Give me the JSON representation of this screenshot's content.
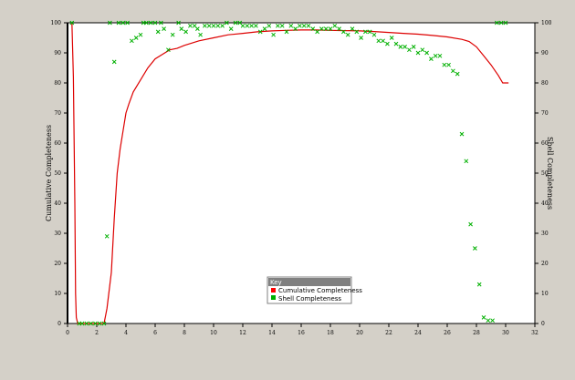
{
  "chart_data": {
    "type": "scatter",
    "xlabel": "",
    "ylabel_left": "Cumulative Completeness",
    "ylabel_right": "Shell Completeness",
    "xlim": [
      0,
      32
    ],
    "ylim": [
      0,
      100
    ],
    "x_ticks": [
      "0",
      "2",
      "4",
      "6",
      "8",
      "10",
      "12",
      "14",
      "16",
      "18",
      "20",
      "22",
      "24",
      "26",
      "28",
      "30",
      "32"
    ],
    "y_ticks": [
      "0",
      "10",
      "20",
      "30",
      "40",
      "50",
      "60",
      "70",
      "80",
      "90",
      "100"
    ],
    "legend": {
      "title": "Key",
      "entries": [
        {
          "label": "Cumulative Completeness",
          "color": "#ff0000",
          "marker": "square"
        },
        {
          "label": "Shell Completeness",
          "color": "#00b000",
          "marker": "square"
        }
      ]
    },
    "series": [
      {
        "name": "Cumulative Completeness",
        "kind": "line",
        "color": "#dd0000",
        "x": [
          0.3,
          0.4,
          0.5,
          0.55,
          0.6,
          0.7,
          1,
          1.5,
          2,
          2.5,
          2.7,
          3,
          3.2,
          3.4,
          3.6,
          3.8,
          4,
          4.2,
          4.5,
          5,
          5.5,
          6,
          6.5,
          7,
          7.5,
          8,
          9,
          10,
          11,
          12,
          13,
          14,
          15,
          16,
          17,
          18,
          19,
          20,
          21,
          22,
          23,
          24,
          25,
          26,
          27,
          27.5,
          28,
          28.5,
          29,
          29.5,
          29.8,
          30.2
        ],
        "y": [
          100,
          82,
          40,
          10,
          2,
          0,
          0,
          0,
          0,
          0,
          5,
          17,
          35,
          50,
          58,
          64,
          70,
          73,
          77,
          81,
          85,
          88,
          89.5,
          91,
          91.5,
          92.5,
          94,
          95,
          96,
          96.5,
          97,
          97.3,
          97.5,
          97.6,
          97.6,
          97.5,
          97.4,
          97.3,
          97.1,
          96.8,
          96.5,
          96.2,
          95.8,
          95.3,
          94.5,
          93.8,
          92,
          89,
          86,
          82.5,
          80,
          80
        ]
      },
      {
        "name": "Shell Completeness",
        "kind": "markers",
        "color": "#00b000",
        "x": [
          0.3,
          0.8,
          1.0,
          1.3,
          1.6,
          1.9,
          2.2,
          2.5,
          2.7,
          2.9,
          3.2,
          3.5,
          3.8,
          4.1,
          4.4,
          4.7,
          5.0,
          5.2,
          5.4,
          5.7,
          6.0,
          6.2,
          6.4,
          6.6,
          6.9,
          7.2,
          7.6,
          7.8,
          8.1,
          8.4,
          8.7,
          8.9,
          9.1,
          9.4,
          9.7,
          10.0,
          10.3,
          10.6,
          10.9,
          11.2,
          11.5,
          11.8,
          12.0,
          12.3,
          12.6,
          12.9,
          13.2,
          13.5,
          13.8,
          14.1,
          14.4,
          14.7,
          15.0,
          15.3,
          15.6,
          15.9,
          16.2,
          16.5,
          16.8,
          17.1,
          17.4,
          17.7,
          18.0,
          18.3,
          18.6,
          18.9,
          19.2,
          19.5,
          19.8,
          20.1,
          20.4,
          20.7,
          21.0,
          21.3,
          21.6,
          21.9,
          22.2,
          22.5,
          22.8,
          23.1,
          23.4,
          23.7,
          24.0,
          24.3,
          24.6,
          24.9,
          25.2,
          25.5,
          25.8,
          26.1,
          26.4,
          26.7,
          27.0,
          27.3,
          27.6,
          27.9,
          28.2,
          28.5,
          28.8,
          29.1,
          29.4,
          29.7,
          30.0
        ],
        "y": [
          100,
          0,
          0,
          0,
          0,
          0,
          0,
          0,
          29,
          100,
          87,
          100,
          100,
          100,
          94,
          95,
          96,
          100,
          100,
          100,
          100,
          97,
          100,
          98,
          91,
          96,
          100,
          98,
          97,
          99,
          99,
          98,
          96,
          99,
          99,
          99,
          99,
          99,
          100,
          98,
          100,
          100,
          99,
          99,
          99,
          99,
          97,
          98,
          99,
          96,
          99,
          99,
          97,
          99,
          98,
          99,
          99,
          99,
          98,
          97,
          98,
          98,
          98,
          99,
          98,
          97,
          96,
          98,
          97,
          95,
          97,
          97,
          96,
          94,
          94,
          93,
          95,
          93,
          92,
          92,
          91,
          92,
          90,
          91,
          90,
          88,
          89,
          89,
          86,
          86,
          84,
          83,
          63,
          54,
          33,
          25,
          13,
          2,
          1,
          1,
          100,
          100,
          100
        ],
        "note": "mirrored below"
      }
    ]
  }
}
